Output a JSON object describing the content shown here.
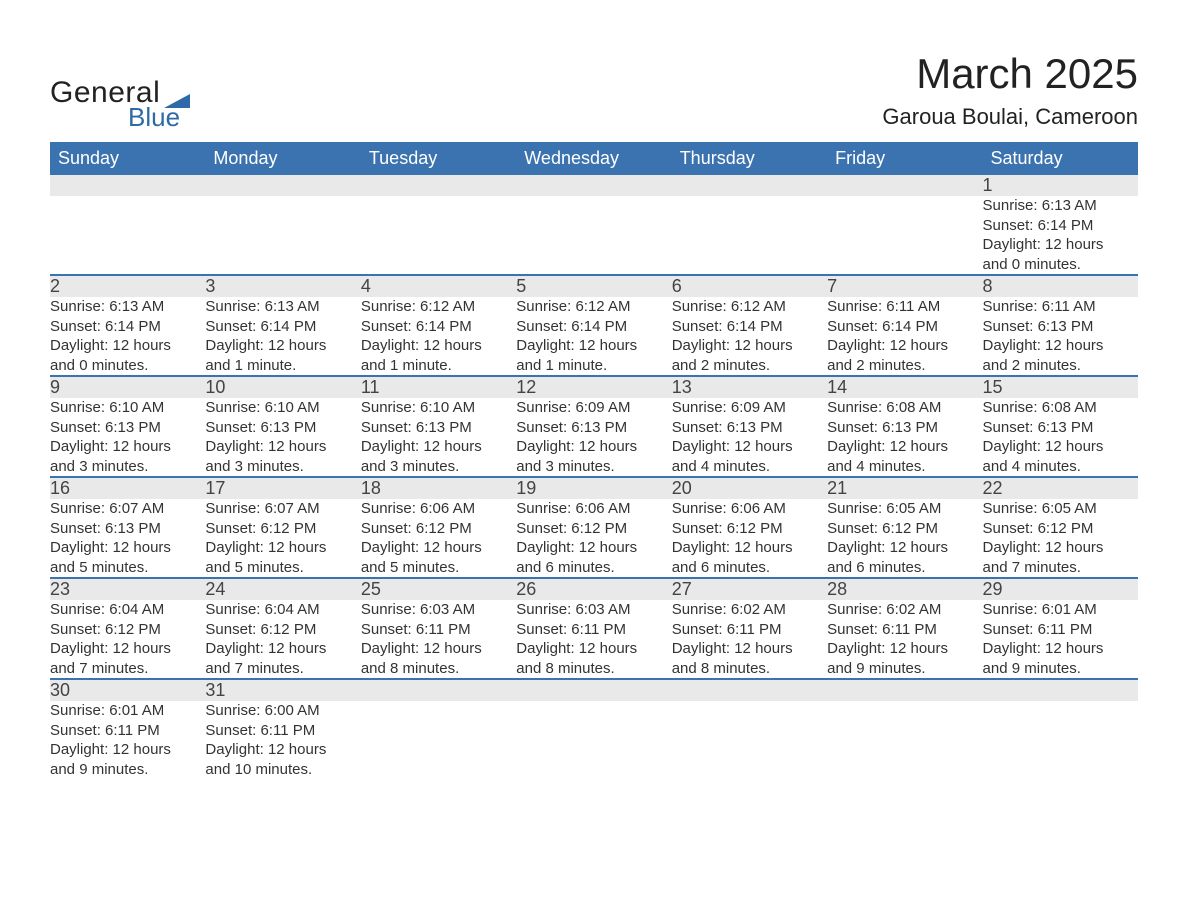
{
  "logo": {
    "text_top": "General",
    "text_bottom": "Blue",
    "accent_color": "#2f6aa8"
  },
  "title": "March 2025",
  "subtitle": "Garoua Boulai, Cameroon",
  "colors": {
    "header_bg": "#3b73b0",
    "header_text": "#ffffff",
    "daynum_bg": "#e9e9e9",
    "row_border": "#3b73b0",
    "body_text": "#333333"
  },
  "day_headers": [
    "Sunday",
    "Monday",
    "Tuesday",
    "Wednesday",
    "Thursday",
    "Friday",
    "Saturday"
  ],
  "weeks": [
    [
      null,
      null,
      null,
      null,
      null,
      null,
      {
        "n": "1",
        "sunrise": "Sunrise: 6:13 AM",
        "sunset": "Sunset: 6:14 PM",
        "daylight1": "Daylight: 12 hours",
        "daylight2": "and 0 minutes."
      }
    ],
    [
      {
        "n": "2",
        "sunrise": "Sunrise: 6:13 AM",
        "sunset": "Sunset: 6:14 PM",
        "daylight1": "Daylight: 12 hours",
        "daylight2": "and 0 minutes."
      },
      {
        "n": "3",
        "sunrise": "Sunrise: 6:13 AM",
        "sunset": "Sunset: 6:14 PM",
        "daylight1": "Daylight: 12 hours",
        "daylight2": "and 1 minute."
      },
      {
        "n": "4",
        "sunrise": "Sunrise: 6:12 AM",
        "sunset": "Sunset: 6:14 PM",
        "daylight1": "Daylight: 12 hours",
        "daylight2": "and 1 minute."
      },
      {
        "n": "5",
        "sunrise": "Sunrise: 6:12 AM",
        "sunset": "Sunset: 6:14 PM",
        "daylight1": "Daylight: 12 hours",
        "daylight2": "and 1 minute."
      },
      {
        "n": "6",
        "sunrise": "Sunrise: 6:12 AM",
        "sunset": "Sunset: 6:14 PM",
        "daylight1": "Daylight: 12 hours",
        "daylight2": "and 2 minutes."
      },
      {
        "n": "7",
        "sunrise": "Sunrise: 6:11 AM",
        "sunset": "Sunset: 6:14 PM",
        "daylight1": "Daylight: 12 hours",
        "daylight2": "and 2 minutes."
      },
      {
        "n": "8",
        "sunrise": "Sunrise: 6:11 AM",
        "sunset": "Sunset: 6:13 PM",
        "daylight1": "Daylight: 12 hours",
        "daylight2": "and 2 minutes."
      }
    ],
    [
      {
        "n": "9",
        "sunrise": "Sunrise: 6:10 AM",
        "sunset": "Sunset: 6:13 PM",
        "daylight1": "Daylight: 12 hours",
        "daylight2": "and 3 minutes."
      },
      {
        "n": "10",
        "sunrise": "Sunrise: 6:10 AM",
        "sunset": "Sunset: 6:13 PM",
        "daylight1": "Daylight: 12 hours",
        "daylight2": "and 3 minutes."
      },
      {
        "n": "11",
        "sunrise": "Sunrise: 6:10 AM",
        "sunset": "Sunset: 6:13 PM",
        "daylight1": "Daylight: 12 hours",
        "daylight2": "and 3 minutes."
      },
      {
        "n": "12",
        "sunrise": "Sunrise: 6:09 AM",
        "sunset": "Sunset: 6:13 PM",
        "daylight1": "Daylight: 12 hours",
        "daylight2": "and 3 minutes."
      },
      {
        "n": "13",
        "sunrise": "Sunrise: 6:09 AM",
        "sunset": "Sunset: 6:13 PM",
        "daylight1": "Daylight: 12 hours",
        "daylight2": "and 4 minutes."
      },
      {
        "n": "14",
        "sunrise": "Sunrise: 6:08 AM",
        "sunset": "Sunset: 6:13 PM",
        "daylight1": "Daylight: 12 hours",
        "daylight2": "and 4 minutes."
      },
      {
        "n": "15",
        "sunrise": "Sunrise: 6:08 AM",
        "sunset": "Sunset: 6:13 PM",
        "daylight1": "Daylight: 12 hours",
        "daylight2": "and 4 minutes."
      }
    ],
    [
      {
        "n": "16",
        "sunrise": "Sunrise: 6:07 AM",
        "sunset": "Sunset: 6:13 PM",
        "daylight1": "Daylight: 12 hours",
        "daylight2": "and 5 minutes."
      },
      {
        "n": "17",
        "sunrise": "Sunrise: 6:07 AM",
        "sunset": "Sunset: 6:12 PM",
        "daylight1": "Daylight: 12 hours",
        "daylight2": "and 5 minutes."
      },
      {
        "n": "18",
        "sunrise": "Sunrise: 6:06 AM",
        "sunset": "Sunset: 6:12 PM",
        "daylight1": "Daylight: 12 hours",
        "daylight2": "and 5 minutes."
      },
      {
        "n": "19",
        "sunrise": "Sunrise: 6:06 AM",
        "sunset": "Sunset: 6:12 PM",
        "daylight1": "Daylight: 12 hours",
        "daylight2": "and 6 minutes."
      },
      {
        "n": "20",
        "sunrise": "Sunrise: 6:06 AM",
        "sunset": "Sunset: 6:12 PM",
        "daylight1": "Daylight: 12 hours",
        "daylight2": "and 6 minutes."
      },
      {
        "n": "21",
        "sunrise": "Sunrise: 6:05 AM",
        "sunset": "Sunset: 6:12 PM",
        "daylight1": "Daylight: 12 hours",
        "daylight2": "and 6 minutes."
      },
      {
        "n": "22",
        "sunrise": "Sunrise: 6:05 AM",
        "sunset": "Sunset: 6:12 PM",
        "daylight1": "Daylight: 12 hours",
        "daylight2": "and 7 minutes."
      }
    ],
    [
      {
        "n": "23",
        "sunrise": "Sunrise: 6:04 AM",
        "sunset": "Sunset: 6:12 PM",
        "daylight1": "Daylight: 12 hours",
        "daylight2": "and 7 minutes."
      },
      {
        "n": "24",
        "sunrise": "Sunrise: 6:04 AM",
        "sunset": "Sunset: 6:12 PM",
        "daylight1": "Daylight: 12 hours",
        "daylight2": "and 7 minutes."
      },
      {
        "n": "25",
        "sunrise": "Sunrise: 6:03 AM",
        "sunset": "Sunset: 6:11 PM",
        "daylight1": "Daylight: 12 hours",
        "daylight2": "and 8 minutes."
      },
      {
        "n": "26",
        "sunrise": "Sunrise: 6:03 AM",
        "sunset": "Sunset: 6:11 PM",
        "daylight1": "Daylight: 12 hours",
        "daylight2": "and 8 minutes."
      },
      {
        "n": "27",
        "sunrise": "Sunrise: 6:02 AM",
        "sunset": "Sunset: 6:11 PM",
        "daylight1": "Daylight: 12 hours",
        "daylight2": "and 8 minutes."
      },
      {
        "n": "28",
        "sunrise": "Sunrise: 6:02 AM",
        "sunset": "Sunset: 6:11 PM",
        "daylight1": "Daylight: 12 hours",
        "daylight2": "and 9 minutes."
      },
      {
        "n": "29",
        "sunrise": "Sunrise: 6:01 AM",
        "sunset": "Sunset: 6:11 PM",
        "daylight1": "Daylight: 12 hours",
        "daylight2": "and 9 minutes."
      }
    ],
    [
      {
        "n": "30",
        "sunrise": "Sunrise: 6:01 AM",
        "sunset": "Sunset: 6:11 PM",
        "daylight1": "Daylight: 12 hours",
        "daylight2": "and 9 minutes."
      },
      {
        "n": "31",
        "sunrise": "Sunrise: 6:00 AM",
        "sunset": "Sunset: 6:11 PM",
        "daylight1": "Daylight: 12 hours",
        "daylight2": "and 10 minutes."
      },
      null,
      null,
      null,
      null,
      null
    ]
  ]
}
